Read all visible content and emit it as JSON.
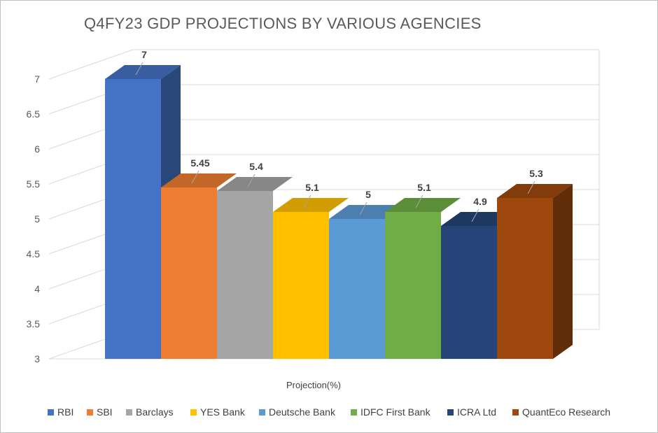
{
  "chart_data": {
    "type": "bar",
    "title": "Q4FY23 GDP PROJECTIONS BY VARIOUS AGENCIES",
    "xlabel": "Projection(%)",
    "ylabel": "",
    "ylim": [
      3,
      7
    ],
    "yticks": [
      "3",
      "3.5",
      "4",
      "4.5",
      "5",
      "5.5",
      "6",
      "6.5",
      "7"
    ],
    "series": [
      {
        "name": "RBI",
        "value": 7,
        "label": "7",
        "color": "#4472C4"
      },
      {
        "name": "SBI",
        "value": 5.45,
        "label": "5.45",
        "color": "#ED7D31"
      },
      {
        "name": "Barclays",
        "value": 5.4,
        "label": "5.4",
        "color": "#A5A5A5"
      },
      {
        "name": "YES Bank",
        "value": 5.1,
        "label": "5.1",
        "color": "#FFC000"
      },
      {
        "name": "Deutsche Bank",
        "value": 5,
        "label": "5",
        "color": "#5B9BD5"
      },
      {
        "name": "IDFC First Bank",
        "value": 5.1,
        "label": "5.1",
        "color": "#70AD47"
      },
      {
        "name": "ICRA Ltd",
        "value": 4.9,
        "label": "4.9",
        "color": "#264478"
      },
      {
        "name": "QuantEco Research",
        "value": 5.3,
        "label": "5.3",
        "color": "#9E480E"
      }
    ],
    "grid": true,
    "legend_position": "bottom"
  }
}
